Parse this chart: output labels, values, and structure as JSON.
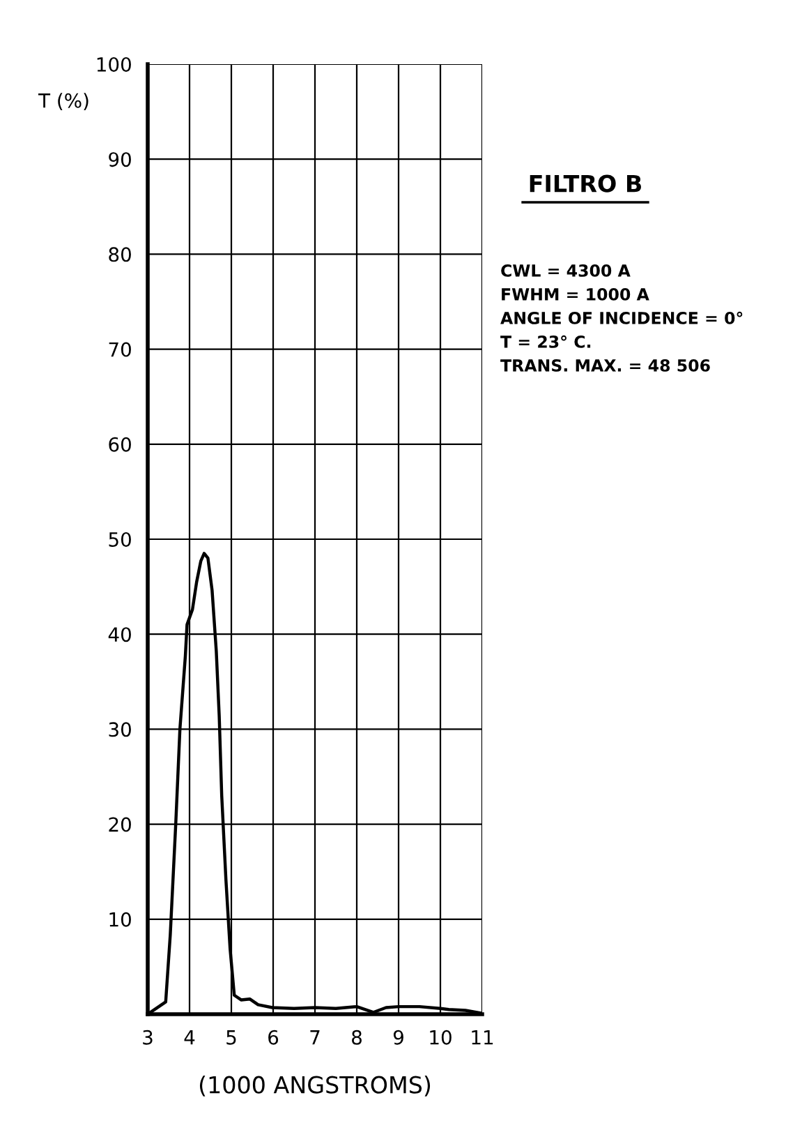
{
  "chart_data": {
    "type": "line",
    "title": "FILTRO B",
    "ylabel": "T (%)",
    "xlabel": "(1000 ANGSTROMS)",
    "annotations": [
      "CWL = 4300 A",
      "FWHM = 1000 A",
      "ANGLE OF INCIDENCE = 0°",
      "T = 23° C.",
      "TRANS. MAX. = 48 506"
    ],
    "series": [
      {
        "color": "#000000",
        "x": [
          3.0,
          3.43,
          3.54,
          3.67,
          3.77,
          3.9,
          3.94,
          4.07,
          4.17,
          4.27,
          4.35,
          4.44,
          4.54,
          4.64,
          4.71,
          4.77,
          4.87,
          4.97,
          5.07,
          5.24,
          5.44,
          5.64,
          5.98,
          6.5,
          7.0,
          7.5,
          8.0,
          8.4,
          8.7,
          9.0,
          9.5,
          10.0,
          10.2,
          10.6,
          11.0
        ],
        "values": [
          0,
          1.3,
          8.4,
          20,
          30,
          37.7,
          41,
          42.6,
          45.5,
          47.7,
          48.5,
          48,
          44.6,
          38.2,
          31.4,
          23,
          14.2,
          6.9,
          2,
          1.5,
          1.6,
          1.0,
          0.7,
          0.6,
          0.7,
          0.6,
          0.8,
          0.2,
          0.7,
          0.8,
          0.8,
          0.6,
          0.5,
          0.4,
          0.1
        ]
      }
    ],
    "xlim": [
      3,
      11
    ],
    "ylim": [
      0,
      100
    ],
    "xticks": [
      3,
      4,
      5,
      6,
      7,
      8,
      9,
      10,
      11
    ],
    "yticks": [
      {
        "value": 0,
        "label": null
      },
      10,
      20,
      30,
      40,
      50,
      60,
      70,
      80,
      90,
      100
    ],
    "grid": true,
    "marker": "none",
    "line_style": "solid"
  }
}
